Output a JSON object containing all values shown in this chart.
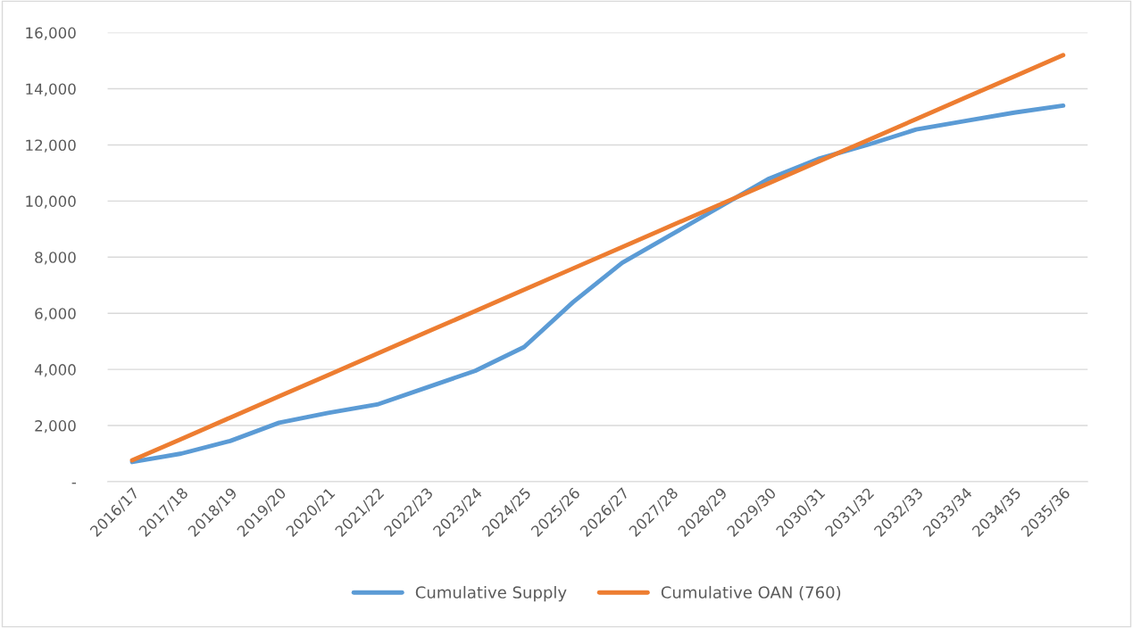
{
  "chart_data": {
    "type": "line",
    "categories": [
      "2016/17",
      "2017/18",
      "2018/19",
      "2019/20",
      "2020/21",
      "2021/22",
      "2022/23",
      "2023/24",
      "2024/25",
      "2025/26",
      "2026/27",
      "2027/28",
      "2028/29",
      "2029/30",
      "2030/31",
      "2031/32",
      "2032/33",
      "2033/34",
      "2034/35",
      "2035/36"
    ],
    "series": [
      {
        "name": "Cumulative Supply",
        "color": "#5b9bd5",
        "values": [
          700,
          1000,
          1450,
          2100,
          2450,
          2750,
          3350,
          3950,
          4800,
          6400,
          7800,
          8800,
          9800,
          10800,
          11500,
          12000,
          12550,
          12850,
          13150,
          13400
        ]
      },
      {
        "name": "Cumulative OAN (760)",
        "color": "#ed7d31",
        "values": [
          760,
          1520,
          2280,
          3040,
          3800,
          4560,
          5320,
          6080,
          6840,
          7600,
          8360,
          9120,
          9880,
          10640,
          11400,
          12160,
          12920,
          13680,
          14440,
          15200
        ]
      }
    ],
    "ylim": [
      0,
      16000
    ],
    "yticks": [
      {
        "value": 0,
        "label": "-"
      },
      {
        "value": 2000,
        "label": "2,000"
      },
      {
        "value": 4000,
        "label": "4,000"
      },
      {
        "value": 6000,
        "label": "6,000"
      },
      {
        "value": 8000,
        "label": "8,000"
      },
      {
        "value": 10000,
        "label": "10,000"
      },
      {
        "value": 12000,
        "label": "12,000"
      },
      {
        "value": 14000,
        "label": "14,000"
      },
      {
        "value": 16000,
        "label": "16,000"
      }
    ],
    "grid": "y",
    "legend": "bottom",
    "marker": "none",
    "line_style": "solid"
  }
}
